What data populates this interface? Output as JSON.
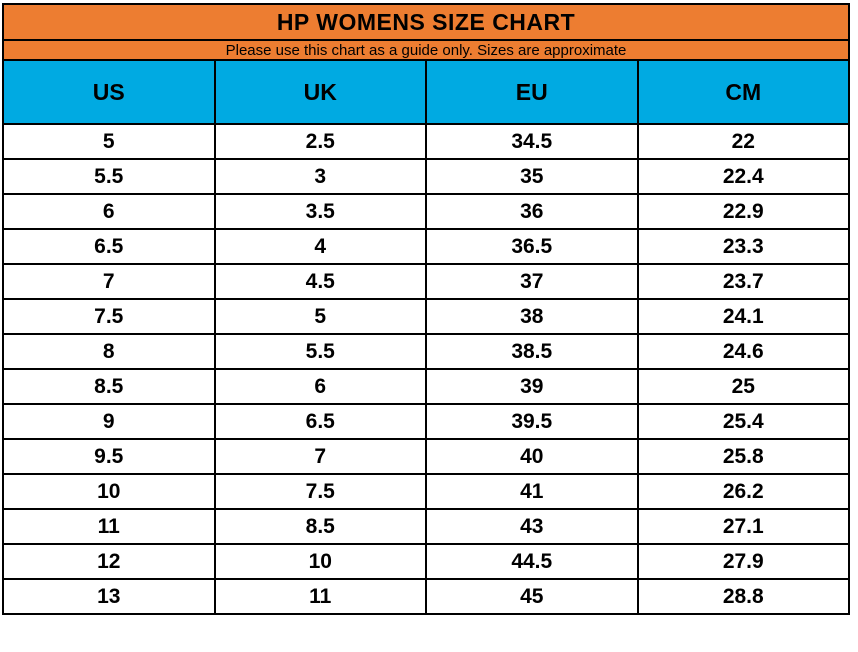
{
  "chart_data": {
    "type": "table",
    "title": "HP WOMENS SIZE CHART",
    "subtitle": "Please use this chart as a guide only. Sizes are approximate",
    "columns": [
      "US",
      "UK",
      "EU",
      "CM"
    ],
    "rows": [
      [
        "5",
        "2.5",
        "34.5",
        "22"
      ],
      [
        "5.5",
        "3",
        "35",
        "22.4"
      ],
      [
        "6",
        "3.5",
        "36",
        "22.9"
      ],
      [
        "6.5",
        "4",
        "36.5",
        "23.3"
      ],
      [
        "7",
        "4.5",
        "37",
        "23.7"
      ],
      [
        "7.5",
        "5",
        "38",
        "24.1"
      ],
      [
        "8",
        "5.5",
        "38.5",
        "24.6"
      ],
      [
        "8.5",
        "6",
        "39",
        "25"
      ],
      [
        "9",
        "6.5",
        "39.5",
        "25.4"
      ],
      [
        "9.5",
        "7",
        "40",
        "25.8"
      ],
      [
        "10",
        "7.5",
        "41",
        "26.2"
      ],
      [
        "11",
        "8.5",
        "43",
        "27.1"
      ],
      [
        "12",
        "10",
        "44.5",
        "27.9"
      ],
      [
        "13",
        "11",
        "45",
        "28.8"
      ]
    ]
  },
  "colors": {
    "title_bg": "#ED7D31",
    "header_bg": "#00AAE2",
    "row_bg": "#FFFFFF",
    "border": "#000000",
    "text": "#000000"
  }
}
